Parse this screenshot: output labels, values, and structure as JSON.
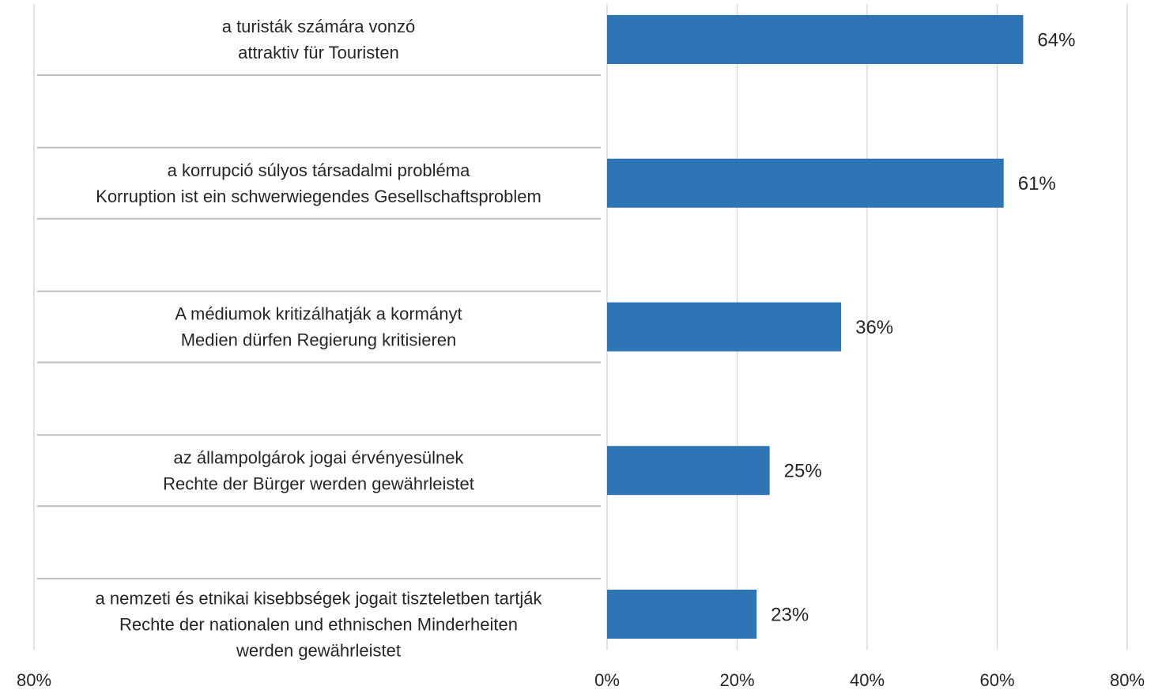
{
  "chart_data": {
    "type": "bar",
    "orientation": "horizontal",
    "categories": [
      [
        "a turisták számára vonzó",
        "attraktiv für Touristen"
      ],
      [
        "a korrupció súlyos társadalmi probléma",
        "Korruption ist ein schwerwiegendes Gesellschaftsproblem"
      ],
      [
        "A médiumok kritizálhatják a kormányt",
        "Medien dürfen Regierung kritisieren"
      ],
      [
        "az állampolgárok jogai érvényesülnek",
        "Rechte der Bürger werden gewährleistet"
      ],
      [
        "a nemzeti és etnikai kisebbségek jogait tiszteletben tartják",
        "Rechte der nationalen und ethnischen Minderheiten",
        "werden gewährleistet"
      ]
    ],
    "values": [
      64,
      61,
      36,
      25,
      23
    ],
    "value_labels": [
      "64%",
      "61%",
      "36%",
      "25%",
      "23%"
    ],
    "color": "#2e75b6",
    "xlim": [
      0,
      80
    ],
    "xticks": [
      {
        "value": 0,
        "label": "0%"
      },
      {
        "value": 20,
        "label": "20%"
      },
      {
        "value": 40,
        "label": "40%"
      },
      {
        "value": 60,
        "label": "60%"
      },
      {
        "value": 80,
        "label": "80%"
      }
    ],
    "x2lim": [
      80,
      0
    ],
    "x2ticks": [
      {
        "value": 80,
        "label": "80%"
      }
    ],
    "grid": true
  }
}
